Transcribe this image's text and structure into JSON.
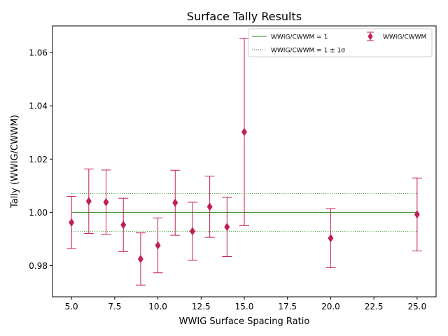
{
  "chart_data": {
    "type": "scatter",
    "title": "Surface Tally Results",
    "xlabel": "WWIG Surface Spacing Ratio",
    "ylabel": "Tally (WWIG/CWWM)",
    "xlim": [
      3.9,
      26.1
    ],
    "ylim": [
      0.9683,
      1.07
    ],
    "xticks": [
      5.0,
      7.5,
      10.0,
      12.5,
      15.0,
      17.5,
      20.0,
      22.5,
      25.0
    ],
    "xtick_labels": [
      "5.0",
      "7.5",
      "10.0",
      "12.5",
      "15.0",
      "17.5",
      "20.0",
      "22.5",
      "25.0"
    ],
    "yticks": [
      0.98,
      1.0,
      1.02,
      1.04,
      1.06
    ],
    "ytick_labels": [
      "0.98",
      "1.00",
      "1.02",
      "1.04",
      "1.06"
    ],
    "grid": false,
    "legend_position": "top-right",
    "reference_lines": {
      "unity": {
        "label": "WWIG/CWWM = 1",
        "y": 1.0,
        "x_range": [
          5,
          25
        ],
        "color": "#2a8a1a",
        "style": "solid"
      },
      "sigma": {
        "label": "WWIG/CWWM  = 1 ± 1σ",
        "y": [
          0.9929,
          1.0071
        ],
        "x_range": [
          5,
          25
        ],
        "color": "#2a8a1a",
        "style": "dotted"
      }
    },
    "series": [
      {
        "name": "WWIG/CWWM",
        "color": "#c21e56",
        "marker": "diamond",
        "points": [
          {
            "x": 5,
            "y": 0.9962,
            "err": 0.0098
          },
          {
            "x": 6,
            "y": 1.0042,
            "err": 0.0121
          },
          {
            "x": 7,
            "y": 1.0038,
            "err": 0.0121
          },
          {
            "x": 8,
            "y": 0.9953,
            "err": 0.01
          },
          {
            "x": 9,
            "y": 0.9825,
            "err": 0.0098
          },
          {
            "x": 10,
            "y": 0.9876,
            "err": 0.0103
          },
          {
            "x": 11,
            "y": 1.0036,
            "err": 0.0122
          },
          {
            "x": 12,
            "y": 0.9929,
            "err": 0.0109
          },
          {
            "x": 13,
            "y": 1.0021,
            "err": 0.0115
          },
          {
            "x": 14,
            "y": 0.9945,
            "err": 0.0111
          },
          {
            "x": 15,
            "y": 1.0302,
            "err": 0.0352
          },
          {
            "x": 20,
            "y": 0.9903,
            "err": 0.0111
          },
          {
            "x": 25,
            "y": 0.9992,
            "err": 0.0137
          }
        ]
      }
    ]
  }
}
